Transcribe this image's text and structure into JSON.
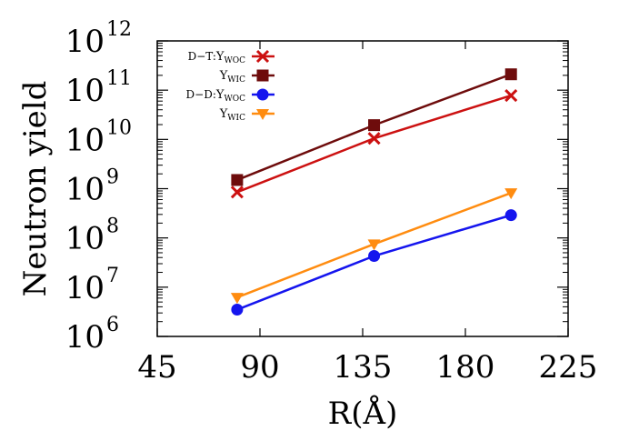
{
  "chart_data": {
    "type": "line",
    "xlabel": "R(Å)",
    "ylabel": "Neutron yield",
    "xlim": [
      45,
      225
    ],
    "ylim": [
      1000000,
      1000000000000
    ],
    "yscale": "log",
    "xticks": [
      "45",
      "90",
      "135",
      "180",
      "225"
    ],
    "yticks": [
      {
        "base": "10",
        "exp": "6"
      },
      {
        "base": "10",
        "exp": "7"
      },
      {
        "base": "10",
        "exp": "8"
      },
      {
        "base": "10",
        "exp": "9"
      },
      {
        "base": "10",
        "exp": "10"
      },
      {
        "base": "10",
        "exp": "11"
      },
      {
        "base": "10",
        "exp": "12"
      }
    ],
    "grid": false,
    "legend_position": "top-left",
    "x": [
      80,
      140,
      200
    ],
    "series": [
      {
        "legend_prefix": "D−T:",
        "legend_main": "Y",
        "legend_sub": "WOC",
        "color": "#cc1111",
        "marker": "x",
        "values": [
          850000000,
          10500000000,
          78000000000
        ]
      },
      {
        "legend_prefix": "",
        "legend_main": "Y",
        "legend_sub": "WIC",
        "color": "#6e0c0c",
        "marker": "square",
        "values": [
          1500000000,
          19500000000,
          210000000000
        ]
      },
      {
        "legend_prefix": "D−D:",
        "legend_main": "Y",
        "legend_sub": "WOC",
        "color": "#1515ee",
        "marker": "circle",
        "values": [
          3500000,
          43000000,
          290000000
        ]
      },
      {
        "legend_prefix": "",
        "legend_main": "Y",
        "legend_sub": "WIC",
        "color": "#ff8c10",
        "marker": "triangle-down",
        "values": [
          6200000,
          75000000,
          820000000
        ]
      }
    ]
  }
}
